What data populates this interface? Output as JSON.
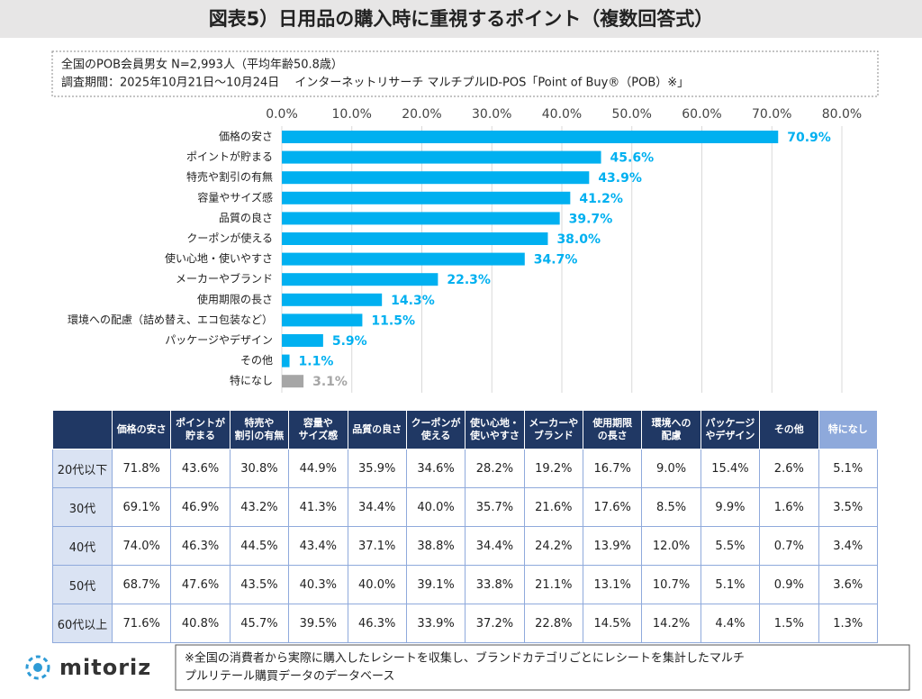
{
  "title": "図表5）日用品の購入時に重視するポイント（複数回答式）",
  "info": [
    "全国のPOB会員男女 N=2,993人（平均年齢50.8歳）",
    "調査期間：2025年10月21日～10月24日　 インターネットリサーチ マルチプルID-POS「Point of Buy®（POB）※」"
  ],
  "chart_data": {
    "type": "hbar",
    "categories": [
      "価格の安さ",
      "ポイントが貯まる",
      "特売や割引の有無",
      "容量やサイズ感",
      "品質の良さ",
      "クーポンが使える",
      "使い心地・使いやすさ",
      "メーカーやブランド",
      "使用期限の長さ",
      "環境への配慮（詰め替え、エコ包装など）",
      "パッケージやデザイン",
      "その他",
      "特になし"
    ],
    "values": [
      70.9,
      45.6,
      43.9,
      41.2,
      39.7,
      38.0,
      34.7,
      22.3,
      14.3,
      11.5,
      5.9,
      1.1,
      3.1
    ],
    "value_labels": [
      "70.9%",
      "45.6%",
      "43.9%",
      "41.2%",
      "39.7%",
      "38.0%",
      "34.7%",
      "22.3%",
      "14.3%",
      "11.5%",
      "5.9%",
      "1.1%",
      "3.1%"
    ],
    "colors": [
      "#00b0f0",
      "#00b0f0",
      "#00b0f0",
      "#00b0f0",
      "#00b0f0",
      "#00b0f0",
      "#00b0f0",
      "#00b0f0",
      "#00b0f0",
      "#00b0f0",
      "#00b0f0",
      "#00b0f0",
      "#a6a6a6"
    ],
    "xlim": [
      0,
      80
    ],
    "xticks": [
      {
        "value": 0,
        "label": "0.0%"
      },
      {
        "value": 10,
        "label": "10.0%"
      },
      {
        "value": 20,
        "label": "20.0%"
      },
      {
        "value": 30,
        "label": "30.0%"
      },
      {
        "value": 40,
        "label": "40.0%"
      },
      {
        "value": 50,
        "label": "50.0%"
      },
      {
        "value": 60,
        "label": "60.0%"
      },
      {
        "value": 70,
        "label": "70.0%"
      },
      {
        "value": 80,
        "label": "80.0%"
      }
    ],
    "grid": true
  },
  "table": {
    "columns": [
      [
        "価格の安さ"
      ],
      [
        "ポイントが",
        "貯まる"
      ],
      [
        "特売や",
        "割引の有無"
      ],
      [
        "容量や",
        "サイズ感"
      ],
      [
        "品質の良さ"
      ],
      [
        "クーポンが",
        "使える"
      ],
      [
        "使い心地・",
        "使いやすさ"
      ],
      [
        "メーカーや",
        "ブランド"
      ],
      [
        "使用期限",
        "の長さ"
      ],
      [
        "環境への",
        "配慮"
      ],
      [
        "パッケージ",
        "やデザイン"
      ],
      [
        "その他"
      ],
      [
        "特になし"
      ]
    ],
    "rows": [
      {
        "label": "20代以下",
        "cells": [
          "71.8%",
          "43.6%",
          "30.8%",
          "44.9%",
          "35.9%",
          "34.6%",
          "28.2%",
          "19.2%",
          "16.7%",
          "9.0%",
          "15.4%",
          "2.6%",
          "5.1%"
        ]
      },
      {
        "label": "30代",
        "cells": [
          "69.1%",
          "46.9%",
          "43.2%",
          "41.3%",
          "34.4%",
          "40.0%",
          "35.7%",
          "21.6%",
          "17.6%",
          "8.5%",
          "9.9%",
          "1.6%",
          "3.5%"
        ]
      },
      {
        "label": "40代",
        "cells": [
          "74.0%",
          "46.3%",
          "44.5%",
          "43.4%",
          "37.1%",
          "38.8%",
          "34.4%",
          "24.2%",
          "13.9%",
          "12.0%",
          "5.5%",
          "0.7%",
          "3.4%"
        ]
      },
      {
        "label": "50代",
        "cells": [
          "68.7%",
          "47.6%",
          "43.5%",
          "40.3%",
          "40.0%",
          "39.1%",
          "33.8%",
          "21.1%",
          "13.1%",
          "10.7%",
          "5.1%",
          "0.9%",
          "3.6%"
        ]
      },
      {
        "label": "60代以上",
        "cells": [
          "71.6%",
          "40.8%",
          "45.7%",
          "39.5%",
          "46.3%",
          "33.9%",
          "37.2%",
          "22.8%",
          "14.5%",
          "14.2%",
          "4.4%",
          "1.5%",
          "1.3%"
        ]
      }
    ]
  },
  "logo": "mitoriz",
  "note": [
    "※全国の消費者から実際に購入したレシートを収集し、ブランドカテゴリごとにレシートを集計したマルチ",
    "プルリテール購買データのデータベース"
  ]
}
